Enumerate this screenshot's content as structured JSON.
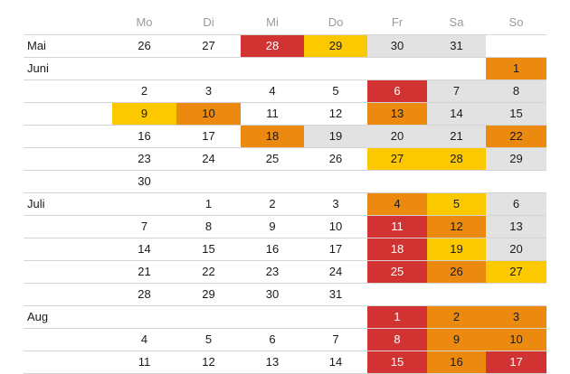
{
  "colors": {
    "red": "#d13232",
    "orange": "#ec8a0f",
    "yellow": "#fcc900",
    "grey": "#e2e2e2"
  },
  "weekdays": [
    "Mo",
    "Di",
    "Mi",
    "Do",
    "Fr",
    "Sa",
    "So"
  ],
  "rows": [
    {
      "month": "Mai",
      "days": [
        {
          "d": "26"
        },
        {
          "d": "27"
        },
        {
          "d": "28",
          "s": "red"
        },
        {
          "d": "29",
          "s": "yellow"
        },
        {
          "d": "30",
          "s": "grey"
        },
        {
          "d": "31",
          "s": "grey"
        },
        null
      ]
    },
    {
      "month": "Juni",
      "days": [
        null,
        null,
        null,
        null,
        null,
        null,
        {
          "d": "1",
          "s": "orange"
        }
      ]
    },
    {
      "month": "",
      "days": [
        {
          "d": "2"
        },
        {
          "d": "3"
        },
        {
          "d": "4"
        },
        {
          "d": "5"
        },
        {
          "d": "6",
          "s": "red"
        },
        {
          "d": "7",
          "s": "grey"
        },
        {
          "d": "8",
          "s": "grey"
        }
      ]
    },
    {
      "month": "",
      "days": [
        {
          "d": "9",
          "s": "yellow"
        },
        {
          "d": "10",
          "s": "orange"
        },
        {
          "d": "11"
        },
        {
          "d": "12"
        },
        {
          "d": "13",
          "s": "orange"
        },
        {
          "d": "14",
          "s": "grey"
        },
        {
          "d": "15",
          "s": "grey"
        }
      ]
    },
    {
      "month": "",
      "days": [
        {
          "d": "16"
        },
        {
          "d": "17"
        },
        {
          "d": "18",
          "s": "orange"
        },
        {
          "d": "19",
          "s": "grey"
        },
        {
          "d": "20",
          "s": "grey"
        },
        {
          "d": "21",
          "s": "grey"
        },
        {
          "d": "22",
          "s": "orange"
        }
      ]
    },
    {
      "month": "",
      "days": [
        {
          "d": "23"
        },
        {
          "d": "24"
        },
        {
          "d": "25"
        },
        {
          "d": "26"
        },
        {
          "d": "27",
          "s": "yellow"
        },
        {
          "d": "28",
          "s": "yellow"
        },
        {
          "d": "29",
          "s": "grey"
        }
      ]
    },
    {
      "month": "",
      "days": [
        {
          "d": "30"
        },
        null,
        null,
        null,
        null,
        null,
        null
      ]
    },
    {
      "month": "Juli",
      "days": [
        null,
        {
          "d": "1"
        },
        {
          "d": "2"
        },
        {
          "d": "3"
        },
        {
          "d": "4",
          "s": "orange"
        },
        {
          "d": "5",
          "s": "yellow"
        },
        {
          "d": "6",
          "s": "grey"
        }
      ]
    },
    {
      "month": "",
      "days": [
        {
          "d": "7"
        },
        {
          "d": "8"
        },
        {
          "d": "9"
        },
        {
          "d": "10"
        },
        {
          "d": "11",
          "s": "red"
        },
        {
          "d": "12",
          "s": "orange"
        },
        {
          "d": "13",
          "s": "grey"
        }
      ]
    },
    {
      "month": "",
      "days": [
        {
          "d": "14"
        },
        {
          "d": "15"
        },
        {
          "d": "16"
        },
        {
          "d": "17"
        },
        {
          "d": "18",
          "s": "red"
        },
        {
          "d": "19",
          "s": "yellow"
        },
        {
          "d": "20",
          "s": "grey"
        }
      ]
    },
    {
      "month": "",
      "days": [
        {
          "d": "21"
        },
        {
          "d": "22"
        },
        {
          "d": "23"
        },
        {
          "d": "24"
        },
        {
          "d": "25",
          "s": "red"
        },
        {
          "d": "26",
          "s": "orange"
        },
        {
          "d": "27",
          "s": "yellow"
        }
      ]
    },
    {
      "month": "",
      "days": [
        {
          "d": "28"
        },
        {
          "d": "29"
        },
        {
          "d": "30"
        },
        {
          "d": "31"
        },
        null,
        null,
        null
      ]
    },
    {
      "month": "Aug",
      "days": [
        null,
        null,
        null,
        null,
        {
          "d": "1",
          "s": "red"
        },
        {
          "d": "2",
          "s": "orange"
        },
        {
          "d": "3",
          "s": "orange"
        }
      ]
    },
    {
      "month": "",
      "days": [
        {
          "d": "4"
        },
        {
          "d": "5"
        },
        {
          "d": "6"
        },
        {
          "d": "7"
        },
        {
          "d": "8",
          "s": "red"
        },
        {
          "d": "9",
          "s": "orange"
        },
        {
          "d": "10",
          "s": "orange"
        }
      ]
    },
    {
      "month": "",
      "days": [
        {
          "d": "11"
        },
        {
          "d": "12"
        },
        {
          "d": "13"
        },
        {
          "d": "14"
        },
        {
          "d": "15",
          "s": "red"
        },
        {
          "d": "16",
          "s": "orange"
        },
        {
          "d": "17",
          "s": "red"
        }
      ]
    }
  ]
}
